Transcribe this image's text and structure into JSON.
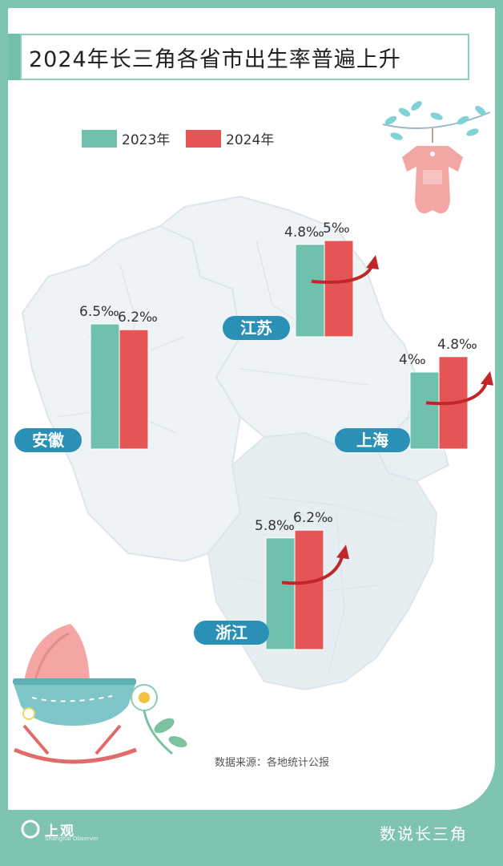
{
  "title": "2024年长三角各省市出生率普遍上升",
  "legend": [
    "2023年",
    "2024年"
  ],
  "colors": {
    "y2023": "#6fc1ae",
    "y2024": "#e65556",
    "label_bg": "#2b90b6",
    "accent": "#7ec4b0"
  },
  "source": "数据来源：各地统计公报",
  "brand": {
    "logo_text": "上观",
    "logo_sub": "Shanghai Observer",
    "series_name": "数说长三角"
  },
  "chart_data": {
    "type": "bar",
    "categories": [
      "江苏",
      "安徽",
      "上海",
      "浙江"
    ],
    "unit": "‰",
    "series": [
      {
        "name": "2023年",
        "values": [
          4.8,
          6.5,
          4.0,
          5.8
        ],
        "labels": [
          "4.8‰",
          "6.5‰",
          "4‰",
          "5.8‰"
        ]
      },
      {
        "name": "2024年",
        "values": [
          5.0,
          6.2,
          4.8,
          6.2
        ],
        "labels": [
          "5‰",
          "6.2‰",
          "4.8‰",
          "6.2‰"
        ]
      }
    ]
  }
}
